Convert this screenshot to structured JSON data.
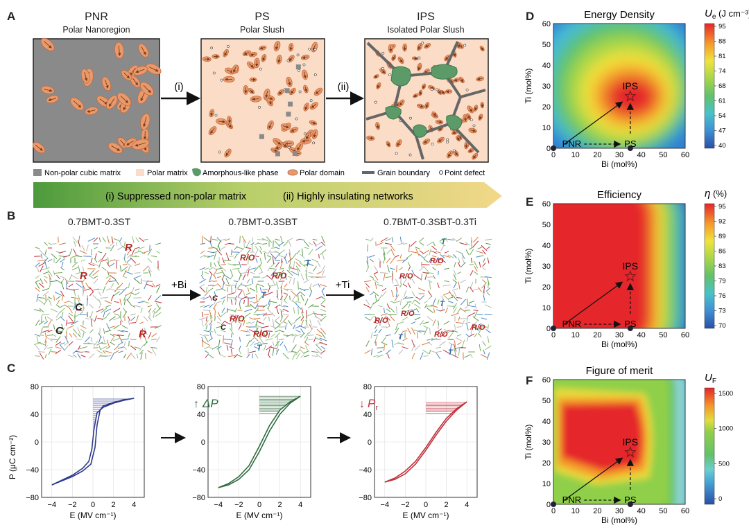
{
  "panel_labels": {
    "a": "A",
    "b": "B",
    "c": "C",
    "d": "D",
    "e": "E",
    "f": "F"
  },
  "panel_a": {
    "boxes": [
      {
        "title": "PNR",
        "subtitle": "Polar Nanoregion"
      },
      {
        "title": "PS",
        "subtitle": "Polar Slush"
      },
      {
        "title": "IPS",
        "subtitle": "Isolated Polar Slush"
      }
    ],
    "arrows": [
      "(i)",
      "(ii)"
    ],
    "legend": [
      "Non-polar cubic matrix",
      "Polar matrix",
      "Amorphous-like phase",
      "Polar domain",
      "Grain boundary",
      "Point defect"
    ],
    "banner": {
      "left": "(i) Suppressed non-polar matrix",
      "right": "(ii) Highly insulating networks"
    }
  },
  "panel_b": {
    "titles": [
      "0.7BMT-0.3ST",
      "0.7BMT-0.3SBT",
      "0.7BMT-0.3SBT-0.3Ti"
    ],
    "arrows": [
      "+Bi",
      "+Ti"
    ],
    "map1": {
      "R": "R",
      "C": "C"
    },
    "map2": {
      "RO": "R/O",
      "T": "T",
      "C": "C"
    },
    "map3": {
      "RO": "R/O",
      "T": "T"
    }
  },
  "panel_c": {
    "plots": [
      {
        "annotation": "",
        "arrow": ""
      },
      {
        "annotation": "ΔP",
        "arrow": "↑"
      },
      {
        "annotation": "P",
        "sub": "r",
        "arrow": "↓"
      }
    ],
    "xlabel": "E (MV cm⁻¹)",
    "ylabel": "P (μC cm⁻²)",
    "xticks": [
      "−4",
      "−2",
      "0",
      "2",
      "4"
    ],
    "yticks": [
      "80",
      "40",
      "0",
      "−40",
      "−80"
    ],
    "colors": [
      "#2e3a8c",
      "#2f6b3e",
      "#c0303a"
    ]
  },
  "chart_data": [
    {
      "type": "line",
      "panel": "C-left",
      "title": "0.7BMT-0.3ST",
      "xlabel": "E (MV cm⁻¹)",
      "ylabel": "P (μC cm⁻²)",
      "xlim": [
        -5,
        5
      ],
      "ylim": [
        -80,
        80
      ],
      "series": [
        {
          "name": "branch-up",
          "x": [
            -4,
            -2,
            -1,
            -0.4,
            -0.1,
            0.1,
            0.4,
            1,
            2,
            3,
            4
          ],
          "y": [
            -62,
            -48,
            -38,
            -28,
            -10,
            18,
            42,
            50,
            56,
            60,
            63
          ]
        },
        {
          "name": "branch-down",
          "x": [
            -4,
            -2,
            -1,
            -0.2,
            0.2,
            0.4,
            0.7,
            1,
            2,
            3,
            4
          ],
          "y": [
            -62,
            -50,
            -42,
            -32,
            -8,
            24,
            46,
            52,
            57,
            61,
            63
          ]
        }
      ]
    },
    {
      "type": "line",
      "panel": "C-middle",
      "title": "0.7BMT-0.3SBT",
      "xlabel": "E (MV cm⁻¹)",
      "ylabel": "P (μC cm⁻²)",
      "xlim": [
        -5,
        5
      ],
      "ylim": [
        -80,
        80
      ],
      "series": [
        {
          "name": "branch-up",
          "x": [
            -4,
            -3,
            -2,
            -1,
            0,
            1,
            2,
            3,
            4
          ],
          "y": [
            -66,
            -60,
            -50,
            -34,
            -6,
            24,
            46,
            58,
            66
          ]
        },
        {
          "name": "branch-down",
          "x": [
            -4,
            -3,
            -2,
            -1,
            0,
            1,
            2,
            3,
            4
          ],
          "y": [
            -66,
            -62,
            -54,
            -40,
            -14,
            16,
            40,
            56,
            66
          ]
        }
      ]
    },
    {
      "type": "line",
      "panel": "C-right",
      "title": "0.7BMT-0.3SBT-0.3Ti",
      "xlabel": "E (MV cm⁻¹)",
      "ylabel": "P (μC cm⁻²)",
      "xlim": [
        -5,
        5
      ],
      "ylim": [
        -80,
        80
      ],
      "series": [
        {
          "name": "branch-up",
          "x": [
            -4,
            -3,
            -2,
            -1,
            0,
            1,
            2,
            3,
            4
          ],
          "y": [
            -58,
            -52,
            -42,
            -28,
            -8,
            14,
            34,
            48,
            58
          ]
        },
        {
          "name": "branch-down",
          "x": [
            -4,
            -3,
            -2,
            -1,
            0,
            1,
            2,
            3,
            4
          ],
          "y": [
            -58,
            -54,
            -46,
            -32,
            -12,
            10,
            30,
            46,
            58
          ]
        }
      ]
    },
    {
      "type": "heatmap",
      "panel": "D",
      "title": "Energy Density",
      "xlabel": "Bi (mol%)",
      "ylabel": "Ti (mol%)",
      "xlim": [
        0,
        60
      ],
      "ylim": [
        0,
        60
      ],
      "colorbar_label": "U_e (J cm⁻³)",
      "colorbar_ticks": [
        40,
        47,
        54,
        61,
        68,
        74,
        81,
        88,
        95
      ],
      "peak": {
        "x": 35,
        "y": 25,
        "label": "IPS"
      },
      "points": [
        {
          "x": 0,
          "y": 0,
          "label": "PNR"
        },
        {
          "x": 35,
          "y": 0,
          "label": "PS"
        }
      ]
    },
    {
      "type": "heatmap",
      "panel": "E",
      "title": "Efficiency",
      "xlabel": "Bi (mol%)",
      "ylabel": "Ti (mol%)",
      "xlim": [
        0,
        60
      ],
      "ylim": [
        0,
        60
      ],
      "colorbar_label": "η (%)",
      "colorbar_ticks": [
        70,
        73,
        76,
        79,
        83,
        86,
        89,
        92,
        95
      ],
      "peak": {
        "x": 35,
        "y": 25,
        "label": "IPS"
      },
      "points": [
        {
          "x": 0,
          "y": 0,
          "label": "PNR"
        },
        {
          "x": 35,
          "y": 0,
          "label": "PS"
        }
      ]
    },
    {
      "type": "heatmap",
      "panel": "F",
      "title": "Figure of merit",
      "xlabel": "Bi (mol%)",
      "ylabel": "Ti (mol%)",
      "xlim": [
        0,
        60
      ],
      "ylim": [
        0,
        60
      ],
      "colorbar_label": "U_F",
      "colorbar_ticks": [
        0,
        500,
        1000,
        1500
      ],
      "peak": {
        "x": 35,
        "y": 25,
        "label": "IPS"
      },
      "points": [
        {
          "x": 0,
          "y": 0,
          "label": "PNR"
        },
        {
          "x": 35,
          "y": 0,
          "label": "PS"
        }
      ]
    }
  ],
  "heatmap_common": {
    "xticks": [
      "0",
      "10",
      "20",
      "30",
      "40",
      "50",
      "60"
    ],
    "yticks": [
      "60",
      "50",
      "40",
      "30",
      "20",
      "10",
      "0"
    ],
    "xlabel": "Bi (mol%)",
    "ylabel": "Ti (mol%)",
    "labels": {
      "ips": "IPS",
      "pnr": "PNR",
      "ps": "PS"
    }
  },
  "colorbars": {
    "d": {
      "symbol": "U",
      "sub": "e",
      "unit": " (J cm⁻³)",
      "ticks": [
        "95",
        "88",
        "81",
        "74",
        "68",
        "61",
        "54",
        "47",
        "40"
      ]
    },
    "e": {
      "symbol": "η",
      "unit": " (%)",
      "ticks": [
        "95",
        "92",
        "89",
        "86",
        "83",
        "79",
        "76",
        "73",
        "70"
      ]
    },
    "f": {
      "symbol": "U",
      "sub": "F",
      "ticks": [
        "1500",
        "1000",
        "500",
        "0"
      ]
    }
  },
  "heatmap_titles": {
    "d": "Energy Density",
    "e": "Efficiency",
    "f": "Figure of merit"
  }
}
